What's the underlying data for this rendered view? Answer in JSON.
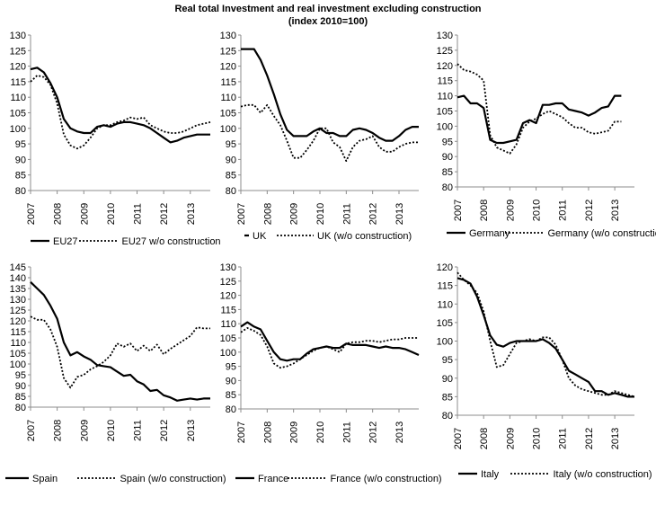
{
  "figure": {
    "title_line1": "Real total Investment and real investment excluding construction",
    "title_line2": "(index 2010=100)"
  },
  "chart_data": [
    {
      "type": "line",
      "x_ticks": [
        "2007",
        "2008",
        "2009",
        "2010",
        "2011",
        "2012",
        "2013"
      ],
      "xlim": [
        2007,
        2013.75
      ],
      "ylim": [
        80,
        130
      ],
      "y_ticks": [
        80,
        85,
        90,
        95,
        100,
        105,
        110,
        115,
        120,
        125,
        130
      ],
      "grid": false,
      "legend_position": "bottom",
      "series": [
        {
          "name": "EU27",
          "style": "solid",
          "x": [
            2007,
            2007.25,
            2007.5,
            2007.75,
            2008,
            2008.25,
            2008.5,
            2008.75,
            2009,
            2009.25,
            2009.5,
            2009.75,
            2010,
            2010.25,
            2010.5,
            2010.75,
            2011,
            2011.25,
            2011.5,
            2011.75,
            2012,
            2012.25,
            2012.5,
            2012.75,
            2013,
            2013.25,
            2013.5,
            2013.75
          ],
          "y": [
            119,
            119.5,
            118,
            114.5,
            110,
            103,
            100,
            99,
            98.5,
            98.5,
            100.5,
            101,
            100.5,
            101.5,
            102,
            102,
            101.5,
            101,
            100,
            98.5,
            97,
            95.5,
            96,
            97,
            97.5,
            98,
            98,
            98
          ]
        },
        {
          "name": "EU27 w/o construction",
          "style": "dotted",
          "x": [
            2007,
            2007.25,
            2007.5,
            2007.75,
            2008,
            2008.25,
            2008.5,
            2008.75,
            2009,
            2009.25,
            2009.5,
            2009.75,
            2010,
            2010.25,
            2010.5,
            2010.75,
            2011,
            2011.25,
            2011.5,
            2011.75,
            2012,
            2012.25,
            2012.5,
            2012.75,
            2013,
            2013.25,
            2013.5,
            2013.75
          ],
          "y": [
            115,
            117,
            116.5,
            114,
            108,
            98,
            94.5,
            93.5,
            94.5,
            97,
            100,
            101,
            101,
            102,
            102.5,
            103.5,
            103,
            103.5,
            101,
            100,
            99,
            98.5,
            98.5,
            99,
            100,
            101,
            101.5,
            102
          ]
        }
      ]
    },
    {
      "type": "line",
      "x_ticks": [
        "2007",
        "2008",
        "2009",
        "2010",
        "2011",
        "2012",
        "2013"
      ],
      "xlim": [
        2007,
        2013.75
      ],
      "ylim": [
        80,
        130
      ],
      "y_ticks": [
        80,
        85,
        90,
        95,
        100,
        105,
        110,
        115,
        120,
        125,
        130
      ],
      "grid": false,
      "legend_position": "bottom",
      "series": [
        {
          "name": "UK",
          "style": "solid",
          "x": [
            2007,
            2007.25,
            2007.5,
            2007.75,
            2008,
            2008.25,
            2008.5,
            2008.75,
            2009,
            2009.25,
            2009.5,
            2009.75,
            2010,
            2010.25,
            2010.5,
            2010.75,
            2011,
            2011.25,
            2011.5,
            2011.75,
            2012,
            2012.25,
            2012.5,
            2012.75,
            2013,
            2013.25,
            2013.5,
            2013.75
          ],
          "y": [
            125.5,
            125.5,
            125.5,
            122,
            117,
            111,
            104.5,
            99.5,
            97.5,
            97.5,
            97.5,
            99,
            100,
            98.5,
            98.5,
            97.5,
            97.5,
            99.5,
            100,
            99.5,
            98.5,
            97,
            96,
            96,
            97.5,
            99.5,
            100.5,
            100.5
          ]
        },
        {
          "name": "UK (w/o construction)",
          "style": "dotted",
          "x": [
            2007,
            2007.25,
            2007.5,
            2007.75,
            2008,
            2008.25,
            2008.5,
            2008.75,
            2009,
            2009.25,
            2009.5,
            2009.75,
            2010,
            2010.25,
            2010.5,
            2010.75,
            2011,
            2011.25,
            2011.5,
            2011.75,
            2012,
            2012.25,
            2012.5,
            2012.75,
            2013,
            2013.25,
            2013.5,
            2013.75
          ],
          "y": [
            107,
            107.5,
            107.5,
            105,
            107.5,
            104,
            101,
            96,
            90.5,
            90.5,
            93,
            96,
            100,
            100,
            95.5,
            94,
            89.5,
            94,
            96,
            96.5,
            97.5,
            94,
            92.5,
            92.5,
            94,
            95,
            95.5,
            95.5
          ]
        }
      ]
    },
    {
      "type": "line",
      "x_ticks": [
        "2007",
        "2008",
        "2009",
        "2010",
        "2011",
        "2012",
        "2013"
      ],
      "xlim": [
        2007,
        2013.75
      ],
      "ylim": [
        80,
        130
      ],
      "y_ticks": [
        80,
        85,
        90,
        95,
        100,
        105,
        110,
        115,
        120,
        125,
        130
      ],
      "grid": false,
      "legend_position": "bottom",
      "series": [
        {
          "name": "Germany",
          "style": "solid",
          "x": [
            2007,
            2007.25,
            2007.5,
            2007.75,
            2008,
            2008.25,
            2008.5,
            2008.75,
            2009,
            2009.25,
            2009.5,
            2009.75,
            2010,
            2010.25,
            2010.5,
            2010.75,
            2011,
            2011.25,
            2011.5,
            2011.75,
            2012,
            2012.25,
            2012.5,
            2012.75,
            2013,
            2013.25
          ],
          "y": [
            109.5,
            110,
            107.5,
            107.5,
            106,
            95.5,
            94.5,
            94.5,
            95,
            95.5,
            101,
            102,
            101,
            107,
            107,
            107.5,
            107.5,
            105.5,
            105,
            104.5,
            103.5,
            104.5,
            106,
            106.5,
            110,
            110
          ]
        },
        {
          "name": "Germany  (w/o construction)",
          "style": "dotted",
          "x": [
            2007,
            2007.25,
            2007.5,
            2007.75,
            2008,
            2008.25,
            2008.5,
            2008.75,
            2009,
            2009.25,
            2009.5,
            2009.75,
            2010,
            2010.25,
            2010.5,
            2010.75,
            2011,
            2011.25,
            2011.5,
            2011.75,
            2012,
            2012.25,
            2012.5,
            2012.75,
            2013,
            2013.25
          ],
          "y": [
            120.5,
            118.5,
            118,
            117,
            115,
            97,
            93,
            92,
            91,
            94,
            99.5,
            101.5,
            102.5,
            104,
            105,
            104,
            103,
            101,
            99.5,
            99.5,
            98,
            97.5,
            98,
            98.5,
            101.5,
            101.5
          ]
        }
      ]
    },
    {
      "type": "line",
      "x_ticks": [
        "2007",
        "2008",
        "2009",
        "2010",
        "2011",
        "2012",
        "2013"
      ],
      "xlim": [
        2007,
        2013.75
      ],
      "ylim": [
        80,
        145
      ],
      "y_ticks": [
        80,
        85,
        90,
        95,
        100,
        105,
        110,
        115,
        120,
        125,
        130,
        135,
        140,
        145
      ],
      "grid": false,
      "legend_position": "bottom",
      "series": [
        {
          "name": "Spain",
          "style": "solid",
          "x": [
            2007,
            2007.25,
            2007.5,
            2007.75,
            2008,
            2008.25,
            2008.5,
            2008.75,
            2009,
            2009.25,
            2009.5,
            2009.75,
            2010,
            2010.25,
            2010.5,
            2010.75,
            2011,
            2011.25,
            2011.5,
            2011.75,
            2012,
            2012.25,
            2012.5,
            2012.75,
            2013,
            2013.25,
            2013.5,
            2013.75
          ],
          "y": [
            138,
            135,
            132,
            127,
            121,
            110,
            104,
            105.5,
            103.5,
            102,
            99.5,
            99,
            98.5,
            96.5,
            94.5,
            95,
            92,
            90.5,
            87.5,
            88,
            85.5,
            84.5,
            83,
            83.5,
            84,
            83.5,
            84,
            84
          ]
        },
        {
          "name": "Spain (w/o construction)",
          "style": "dotted",
          "x": [
            2007,
            2007.25,
            2007.5,
            2007.75,
            2008,
            2008.25,
            2008.5,
            2008.75,
            2009,
            2009.25,
            2009.5,
            2009.75,
            2010,
            2010.25,
            2010.5,
            2010.75,
            2011,
            2011.25,
            2011.5,
            2011.75,
            2012,
            2012.25,
            2012.5,
            2012.75,
            2013,
            2013.25,
            2013.5,
            2013.75
          ],
          "y": [
            122,
            120.5,
            120.5,
            116,
            108,
            93.5,
            89,
            94,
            95,
            97.5,
            99,
            101,
            104,
            109.5,
            108,
            109.5,
            106,
            108.5,
            106,
            109,
            104.5,
            107,
            109,
            111,
            113,
            117,
            116.5,
            116.5
          ]
        }
      ]
    },
    {
      "type": "line",
      "x_ticks": [
        "2007",
        "2008",
        "2009",
        "2010",
        "2011",
        "2012",
        "2013"
      ],
      "xlim": [
        2007,
        2013.75
      ],
      "ylim": [
        80,
        130
      ],
      "y_ticks": [
        80,
        85,
        90,
        95,
        100,
        105,
        110,
        115,
        120,
        125,
        130
      ],
      "grid": false,
      "legend_position": "bottom",
      "series": [
        {
          "name": "France",
          "style": "solid",
          "x": [
            2007,
            2007.25,
            2007.5,
            2007.75,
            2008,
            2008.25,
            2008.5,
            2008.75,
            2009,
            2009.25,
            2009.5,
            2009.75,
            2010,
            2010.25,
            2010.5,
            2010.75,
            2011,
            2011.25,
            2011.5,
            2011.75,
            2012,
            2012.25,
            2012.5,
            2012.75,
            2013,
            2013.25,
            2013.5,
            2013.75
          ],
          "y": [
            109,
            110.5,
            109,
            108,
            104,
            100,
            97.5,
            97,
            97.5,
            97.5,
            99.5,
            101,
            101.5,
            102,
            101.5,
            101.5,
            103,
            102.5,
            102.5,
            102.5,
            102,
            101.5,
            102,
            101.5,
            101.5,
            101,
            100,
            99
          ]
        },
        {
          "name": "France (w/o construction)",
          "style": "dotted",
          "x": [
            2007,
            2007.25,
            2007.5,
            2007.75,
            2008,
            2008.25,
            2008.5,
            2008.75,
            2009,
            2009.25,
            2009.5,
            2009.75,
            2010,
            2010.25,
            2010.5,
            2010.75,
            2011,
            2011.25,
            2011.5,
            2011.75,
            2012,
            2012.25,
            2012.5,
            2012.75,
            2013,
            2013.25,
            2013.5,
            2013.75
          ],
          "y": [
            107,
            108.5,
            107.5,
            106,
            102,
            96,
            94.5,
            95,
            96,
            97.5,
            99,
            100.5,
            101.5,
            102,
            101,
            100,
            103,
            103.5,
            103.5,
            104,
            104,
            103.5,
            104,
            104.5,
            104.5,
            105,
            105,
            105
          ]
        }
      ]
    },
    {
      "type": "line",
      "x_ticks": [
        "2007",
        "2008",
        "2009",
        "2010",
        "2011",
        "2012",
        "2013"
      ],
      "xlim": [
        2007,
        2013.75
      ],
      "ylim": [
        80,
        120
      ],
      "y_ticks": [
        80,
        85,
        90,
        95,
        100,
        105,
        110,
        115,
        120
      ],
      "grid": false,
      "legend_position": "bottom",
      "series": [
        {
          "name": "Italy",
          "style": "solid",
          "x": [
            2007,
            2007.25,
            2007.5,
            2007.75,
            2008,
            2008.25,
            2008.5,
            2008.75,
            2009,
            2009.25,
            2009.5,
            2009.75,
            2010,
            2010.25,
            2010.5,
            2010.75,
            2011,
            2011.25,
            2011.5,
            2011.75,
            2012,
            2012.25,
            2012.5,
            2012.75,
            2013,
            2013.25,
            2013.5,
            2013.75
          ],
          "y": [
            117,
            116.5,
            115.5,
            112,
            107,
            101.5,
            99,
            98.5,
            99.5,
            100,
            100,
            100,
            100,
            100.5,
            99.5,
            98,
            95,
            92,
            91,
            90,
            89,
            86.5,
            86.5,
            85.5,
            86,
            85.5,
            85,
            85
          ]
        },
        {
          "name": "Italy (w/o construction)",
          "style": "dotted",
          "x": [
            2007,
            2007.25,
            2007.5,
            2007.75,
            2008,
            2008.25,
            2008.5,
            2008.75,
            2009,
            2009.25,
            2009.5,
            2009.75,
            2010,
            2010.25,
            2010.5,
            2010.75,
            2011,
            2011.25,
            2011.5,
            2011.75,
            2012,
            2012.25,
            2012.5,
            2012.75,
            2013,
            2013.25,
            2013.5,
            2013.75
          ],
          "y": [
            118.5,
            116.5,
            115,
            113,
            108,
            100,
            93,
            93.5,
            96.5,
            99.5,
            100,
            100.5,
            100,
            101,
            101,
            99,
            95,
            90,
            88,
            87,
            86.5,
            86,
            85.5,
            85.5,
            86.5,
            86,
            85.5,
            85
          ]
        }
      ]
    }
  ]
}
